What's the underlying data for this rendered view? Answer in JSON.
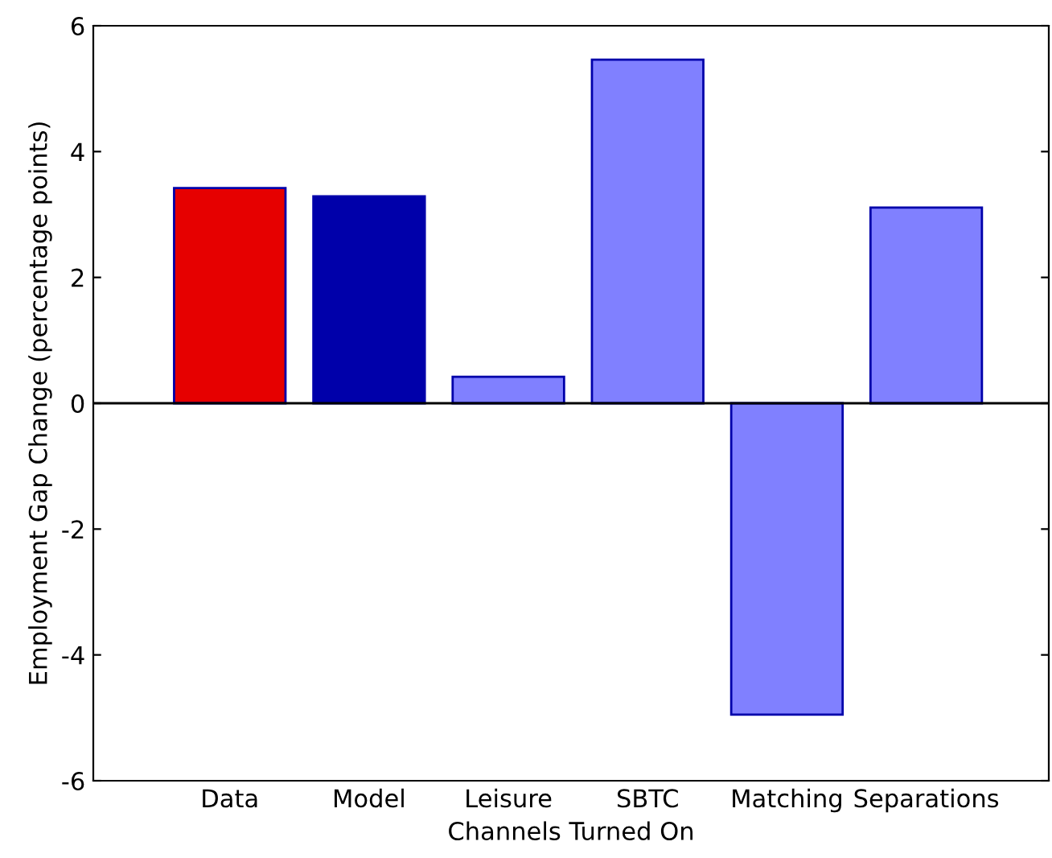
{
  "chart_data": {
    "type": "bar",
    "xlabel": "Channels Turned On",
    "ylabel": "Employment Gap Change (percentage points)",
    "categories": [
      "Data",
      "Model",
      "Leisure",
      "SBTC",
      "Matching",
      "Separations"
    ],
    "values": [
      3.42,
      3.29,
      0.42,
      5.46,
      -4.95,
      3.11
    ],
    "colors": [
      "#e60000",
      "#0000aa",
      "#8080ff",
      "#8080ff",
      "#8080ff",
      "#8080ff"
    ],
    "ylim": [
      -6,
      6
    ],
    "yticks": [
      -6,
      -4,
      -2,
      0,
      2,
      4,
      6
    ],
    "legend": false
  }
}
